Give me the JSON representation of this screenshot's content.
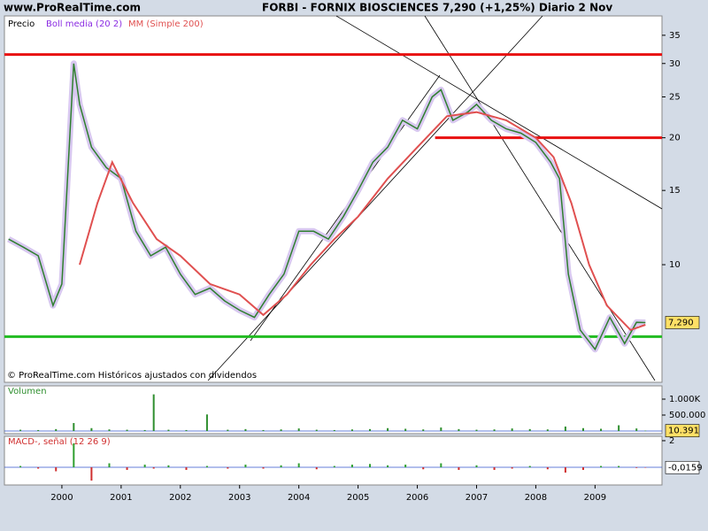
{
  "header": {
    "site": "www.ProRealTime.com"
  },
  "chart_data": [
    {
      "type": "line",
      "title": "FORBI - FORNIX BIOSCIENCES    7,290 (+1,25%)   Diario  2 Nov",
      "note": "© ProRealTime.com  Históricos ajustados con dividendos",
      "indicator_label": "Boll media (20 2)",
      "log_scale": true,
      "xlim": [
        1999.03,
        2010.13
      ],
      "ylim": [
        5.26,
        38.9
      ],
      "yticks": [
        10,
        15,
        20,
        25,
        30,
        35
      ],
      "series": [
        {
          "name": "Precio",
          "color": "#2f7f2f",
          "x": [
            1999.1,
            1999.35,
            1999.6,
            1999.85,
            2000.0,
            2000.2,
            2000.3,
            2000.5,
            2000.75,
            2001.0,
            2001.25,
            2001.5,
            2001.75,
            2002.0,
            2002.25,
            2002.5,
            2002.75,
            2003.0,
            2003.25,
            2003.5,
            2003.75,
            2004.0,
            2004.25,
            2004.5,
            2004.75,
            2005.0,
            2005.25,
            2005.5,
            2005.75,
            2006.0,
            2006.25,
            2006.4,
            2006.6,
            2006.85,
            2007.0,
            2007.25,
            2007.5,
            2007.75,
            2008.0,
            2008.25,
            2008.4,
            2008.55,
            2008.75,
            2009.0,
            2009.25,
            2009.5,
            2009.7,
            2009.85
          ],
          "values": [
            11.5,
            11,
            10.5,
            8,
            9,
            30,
            24,
            19,
            17,
            16,
            12,
            10.5,
            11,
            9.5,
            8.5,
            8.8,
            8.2,
            7.8,
            7.5,
            8.5,
            9.5,
            12,
            12,
            11.5,
            13,
            15,
            17.5,
            19,
            22,
            21,
            25,
            26,
            22,
            23,
            24,
            22,
            21,
            20.5,
            19.5,
            17.5,
            16,
            9.5,
            7,
            6.3,
            7.5,
            6.5,
            7.3,
            7.29
          ]
        },
        {
          "name": "MM (Simple 200)",
          "color": "#e05050",
          "x": [
            2000.3,
            2000.6,
            2000.85,
            2001.2,
            2001.6,
            2002.0,
            2002.5,
            2003.0,
            2003.4,
            2003.8,
            2004.2,
            2004.6,
            2005.0,
            2005.5,
            2006.0,
            2006.5,
            2007.0,
            2007.5,
            2008.0,
            2008.3,
            2008.6,
            2008.9,
            2009.2,
            2009.6,
            2009.85
          ],
          "values": [
            10,
            14,
            17.5,
            14,
            11.5,
            10.5,
            9,
            8.5,
            7.6,
            8.5,
            10,
            11.5,
            13,
            16,
            19,
            22.5,
            23,
            22,
            20,
            18,
            14,
            10,
            8,
            7,
            7.2
          ]
        }
      ],
      "hlines": [
        {
          "value": 31.5,
          "color": "#e81010",
          "x_from": 1999.03
        },
        {
          "value": 20,
          "color": "#e81010",
          "x_from": 2006.3
        },
        {
          "value": 6.75,
          "color": "#22bb22",
          "x_from": 1999.03
        }
      ],
      "last_value": 7.29,
      "last_value_label": "7,290"
    },
    {
      "type": "bar",
      "title": "Volumen",
      "color": "#2f8f2f",
      "xlim": [
        1999.03,
        2010.13
      ],
      "ylim": [
        -83000,
        1417000
      ],
      "yticks": [
        {
          "value": 1000000,
          "label": "1.000K"
        },
        {
          "value": 500000,
          "label": "500.000"
        }
      ],
      "x": [
        1999.3,
        1999.6,
        1999.9,
        2000.2,
        2000.5,
        2000.8,
        2001.1,
        2001.4,
        2001.55,
        2001.8,
        2002.1,
        2002.45,
        2002.8,
        2003.1,
        2003.4,
        2003.7,
        2004.0,
        2004.3,
        2004.6,
        2004.9,
        2005.2,
        2005.5,
        2005.8,
        2006.1,
        2006.4,
        2006.7,
        2007.0,
        2007.3,
        2007.6,
        2007.9,
        2008.2,
        2008.5,
        2008.8,
        2009.1,
        2009.4,
        2009.7,
        2009.85
      ],
      "values": [
        40000,
        30000,
        60000,
        250000,
        90000,
        50000,
        40000,
        30000,
        1150000,
        40000,
        30000,
        520000,
        40000,
        60000,
        30000,
        50000,
        80000,
        40000,
        30000,
        50000,
        60000,
        90000,
        70000,
        50000,
        110000,
        60000,
        40000,
        50000,
        80000,
        60000,
        50000,
        140000,
        90000,
        70000,
        180000,
        80000,
        10391
      ],
      "last_value": 10391,
      "last_value_label": "10.391"
    },
    {
      "type": "bar",
      "title": "MACD-, señal (12 26 9)",
      "color": "#2f9f2f",
      "negative_color": "#d03030",
      "xlim": [
        1999.03,
        2010.13
      ],
      "ylim": [
        -1.33,
        2.33
      ],
      "yticks": [
        2
      ],
      "xticks": [
        2000,
        2001,
        2002,
        2003,
        2004,
        2005,
        2006,
        2007,
        2008,
        2009
      ],
      "x": [
        1999.3,
        1999.6,
        1999.9,
        2000.2,
        2000.5,
        2000.8,
        2001.1,
        2001.4,
        2001.55,
        2001.8,
        2002.1,
        2002.45,
        2002.8,
        2003.1,
        2003.4,
        2003.7,
        2004.0,
        2004.3,
        2004.6,
        2004.9,
        2005.2,
        2005.5,
        2005.8,
        2006.1,
        2006.4,
        2006.7,
        2007.0,
        2007.3,
        2007.6,
        2007.9,
        2008.2,
        2008.5,
        2008.8,
        2009.1,
        2009.4,
        2009.7,
        2009.85
      ],
      "values": [
        0.1,
        -0.1,
        -0.3,
        1.8,
        -1.0,
        0.3,
        -0.2,
        0.2,
        -0.1,
        0.15,
        -0.2,
        0.1,
        -0.1,
        0.2,
        -0.1,
        0.15,
        0.3,
        -0.15,
        0.1,
        0.2,
        0.25,
        0.15,
        0.2,
        -0.15,
        0.3,
        -0.2,
        0.15,
        -0.2,
        -0.1,
        0.1,
        -0.15,
        -0.4,
        -0.2,
        0.1,
        0.1,
        -0.05,
        -0.0159
      ],
      "last_value": -0.0159,
      "last_value_label": "-0,0159"
    }
  ]
}
